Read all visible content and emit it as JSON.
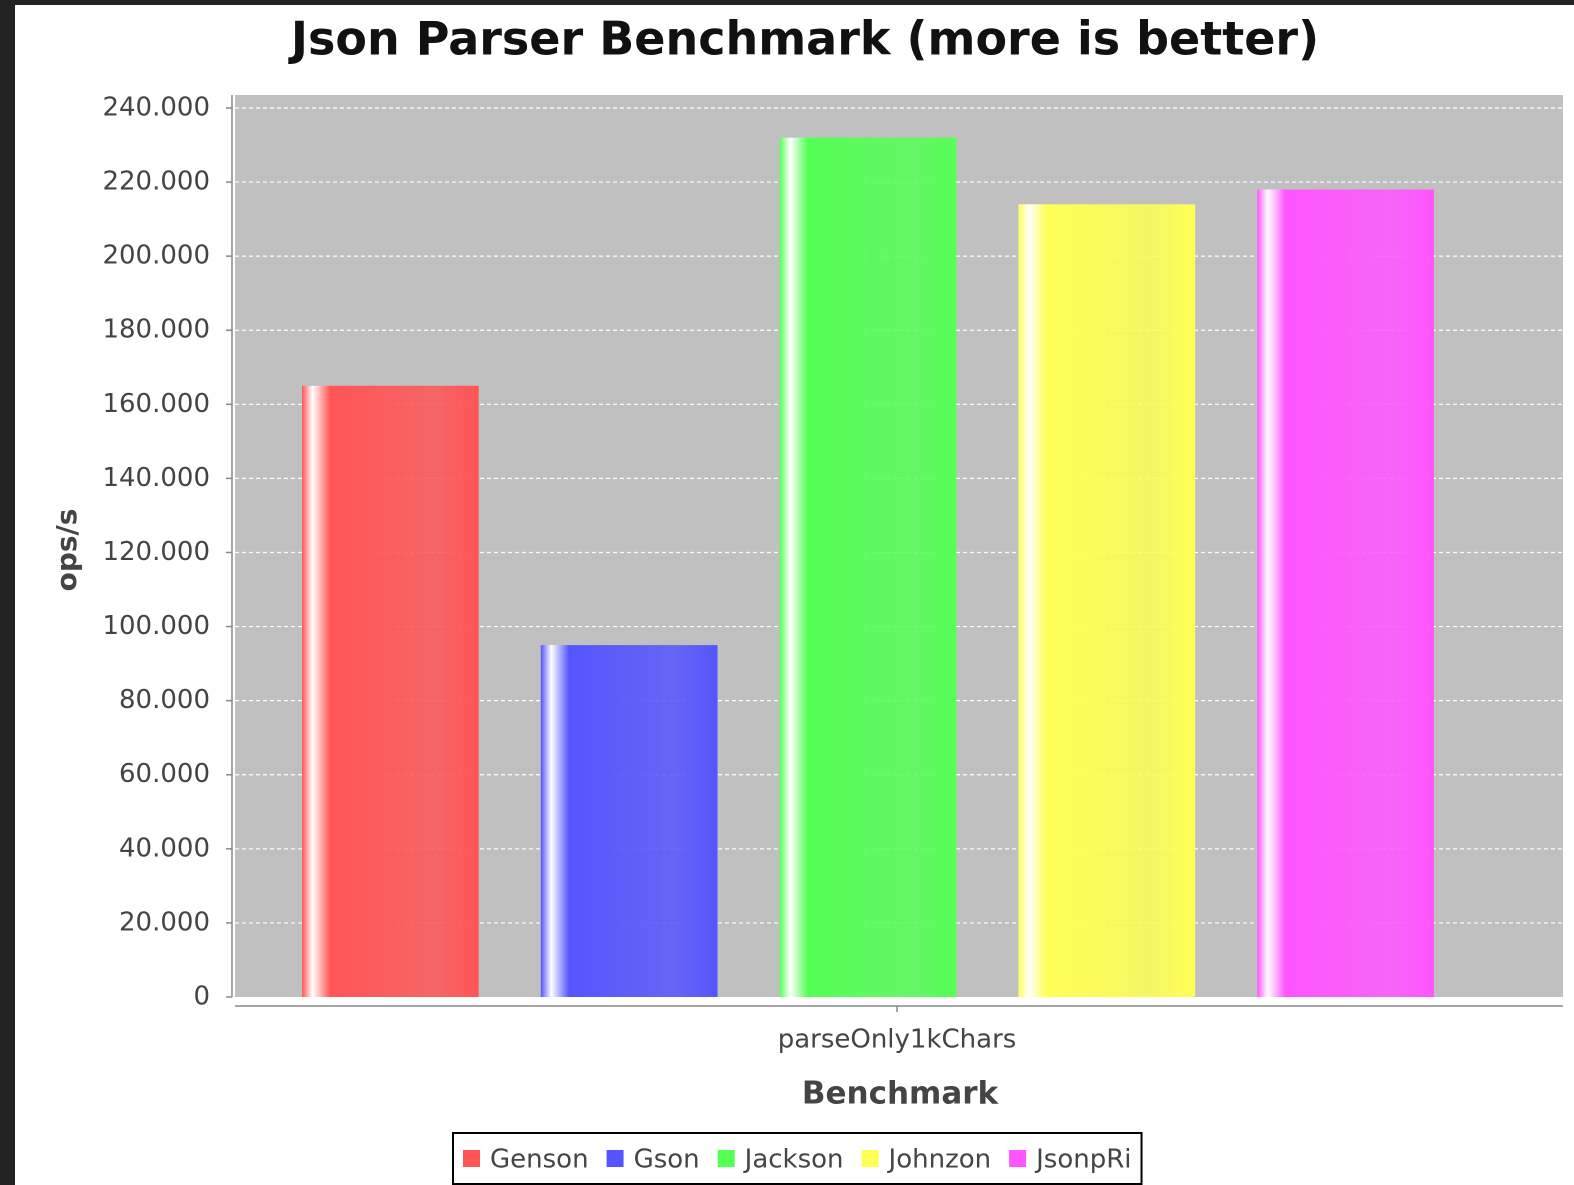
{
  "chart_data": {
    "type": "bar",
    "title": "Json Parser Benchmark (more is better)",
    "x_label": "Benchmark",
    "y_label": "ops/s",
    "categories": [
      "parseOnly1kChars"
    ],
    "series": [
      {
        "name": "Genson",
        "color": "#ff5555",
        "values": [
          165000
        ]
      },
      {
        "name": "Gson",
        "color": "#5555ff",
        "values": [
          95000
        ]
      },
      {
        "name": "Jackson",
        "color": "#55ff55",
        "values": [
          232000
        ]
      },
      {
        "name": "Johnzon",
        "color": "#ffff55",
        "values": [
          214000
        ]
      },
      {
        "name": "JsonpRi",
        "color": "#ff55ff",
        "values": [
          218000
        ]
      }
    ],
    "ylim": [
      0,
      243500
    ],
    "yticks": [
      0,
      {
        "value": 20000,
        "label": "20.000"
      },
      {
        "value": 40000,
        "label": "40.000"
      },
      {
        "value": 60000,
        "label": "60.000"
      },
      {
        "value": 80000,
        "label": "80.000"
      },
      {
        "value": 100000,
        "label": "100.000"
      },
      {
        "value": 120000,
        "label": "120.000"
      },
      {
        "value": 140000,
        "label": "140.000"
      },
      {
        "value": 160000,
        "label": "160.000"
      },
      {
        "value": 180000,
        "label": "180.000"
      },
      {
        "value": 200000,
        "label": "200.000"
      },
      {
        "value": 220000,
        "label": "220.000"
      },
      {
        "value": 240000,
        "label": "240.000"
      }
    ],
    "grid": true,
    "legend": "bottom"
  }
}
